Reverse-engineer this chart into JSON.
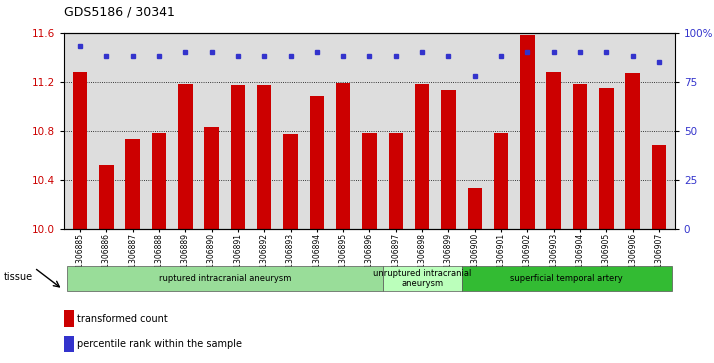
{
  "title": "GDS5186 / 30341",
  "samples": [
    "GSM1306885",
    "GSM1306886",
    "GSM1306887",
    "GSM1306888",
    "GSM1306889",
    "GSM1306890",
    "GSM1306891",
    "GSM1306892",
    "GSM1306893",
    "GSM1306894",
    "GSM1306895",
    "GSM1306896",
    "GSM1306897",
    "GSM1306898",
    "GSM1306899",
    "GSM1306900",
    "GSM1306901",
    "GSM1306902",
    "GSM1306903",
    "GSM1306904",
    "GSM1306905",
    "GSM1306906",
    "GSM1306907"
  ],
  "transformed_count": [
    11.28,
    10.52,
    10.73,
    10.78,
    11.18,
    10.83,
    11.17,
    11.17,
    10.77,
    11.08,
    11.19,
    10.78,
    10.78,
    11.18,
    11.13,
    10.33,
    10.78,
    11.58,
    11.28,
    11.18,
    11.15,
    11.27,
    10.68
  ],
  "percentile_rank": [
    93,
    88,
    88,
    88,
    90,
    90,
    88,
    88,
    88,
    90,
    88,
    88,
    88,
    90,
    88,
    78,
    88,
    90,
    90,
    90,
    90,
    88,
    85
  ],
  "ylim_left": [
    10.0,
    11.6
  ],
  "ylim_right": [
    0,
    100
  ],
  "yticks_left": [
    10.0,
    10.4,
    10.8,
    11.2,
    11.6
  ],
  "yticks_right": [
    0,
    25,
    50,
    75,
    100
  ],
  "bar_color": "#cc0000",
  "dot_color": "#3333cc",
  "groups": [
    {
      "label": "ruptured intracranial aneurysm",
      "start": 0,
      "end": 12,
      "color": "#99dd99"
    },
    {
      "label": "unruptured intracranial\naneurysm",
      "start": 12,
      "end": 15,
      "color": "#bbffbb"
    },
    {
      "label": "superficial temporal artery",
      "start": 15,
      "end": 23,
      "color": "#33bb33"
    }
  ],
  "tissue_label": "tissue",
  "legend_bar_label": "transformed count",
  "legend_dot_label": "percentile rank within the sample",
  "plot_bg_color": "#ffffff",
  "axes_bg_color": "#dddddd"
}
